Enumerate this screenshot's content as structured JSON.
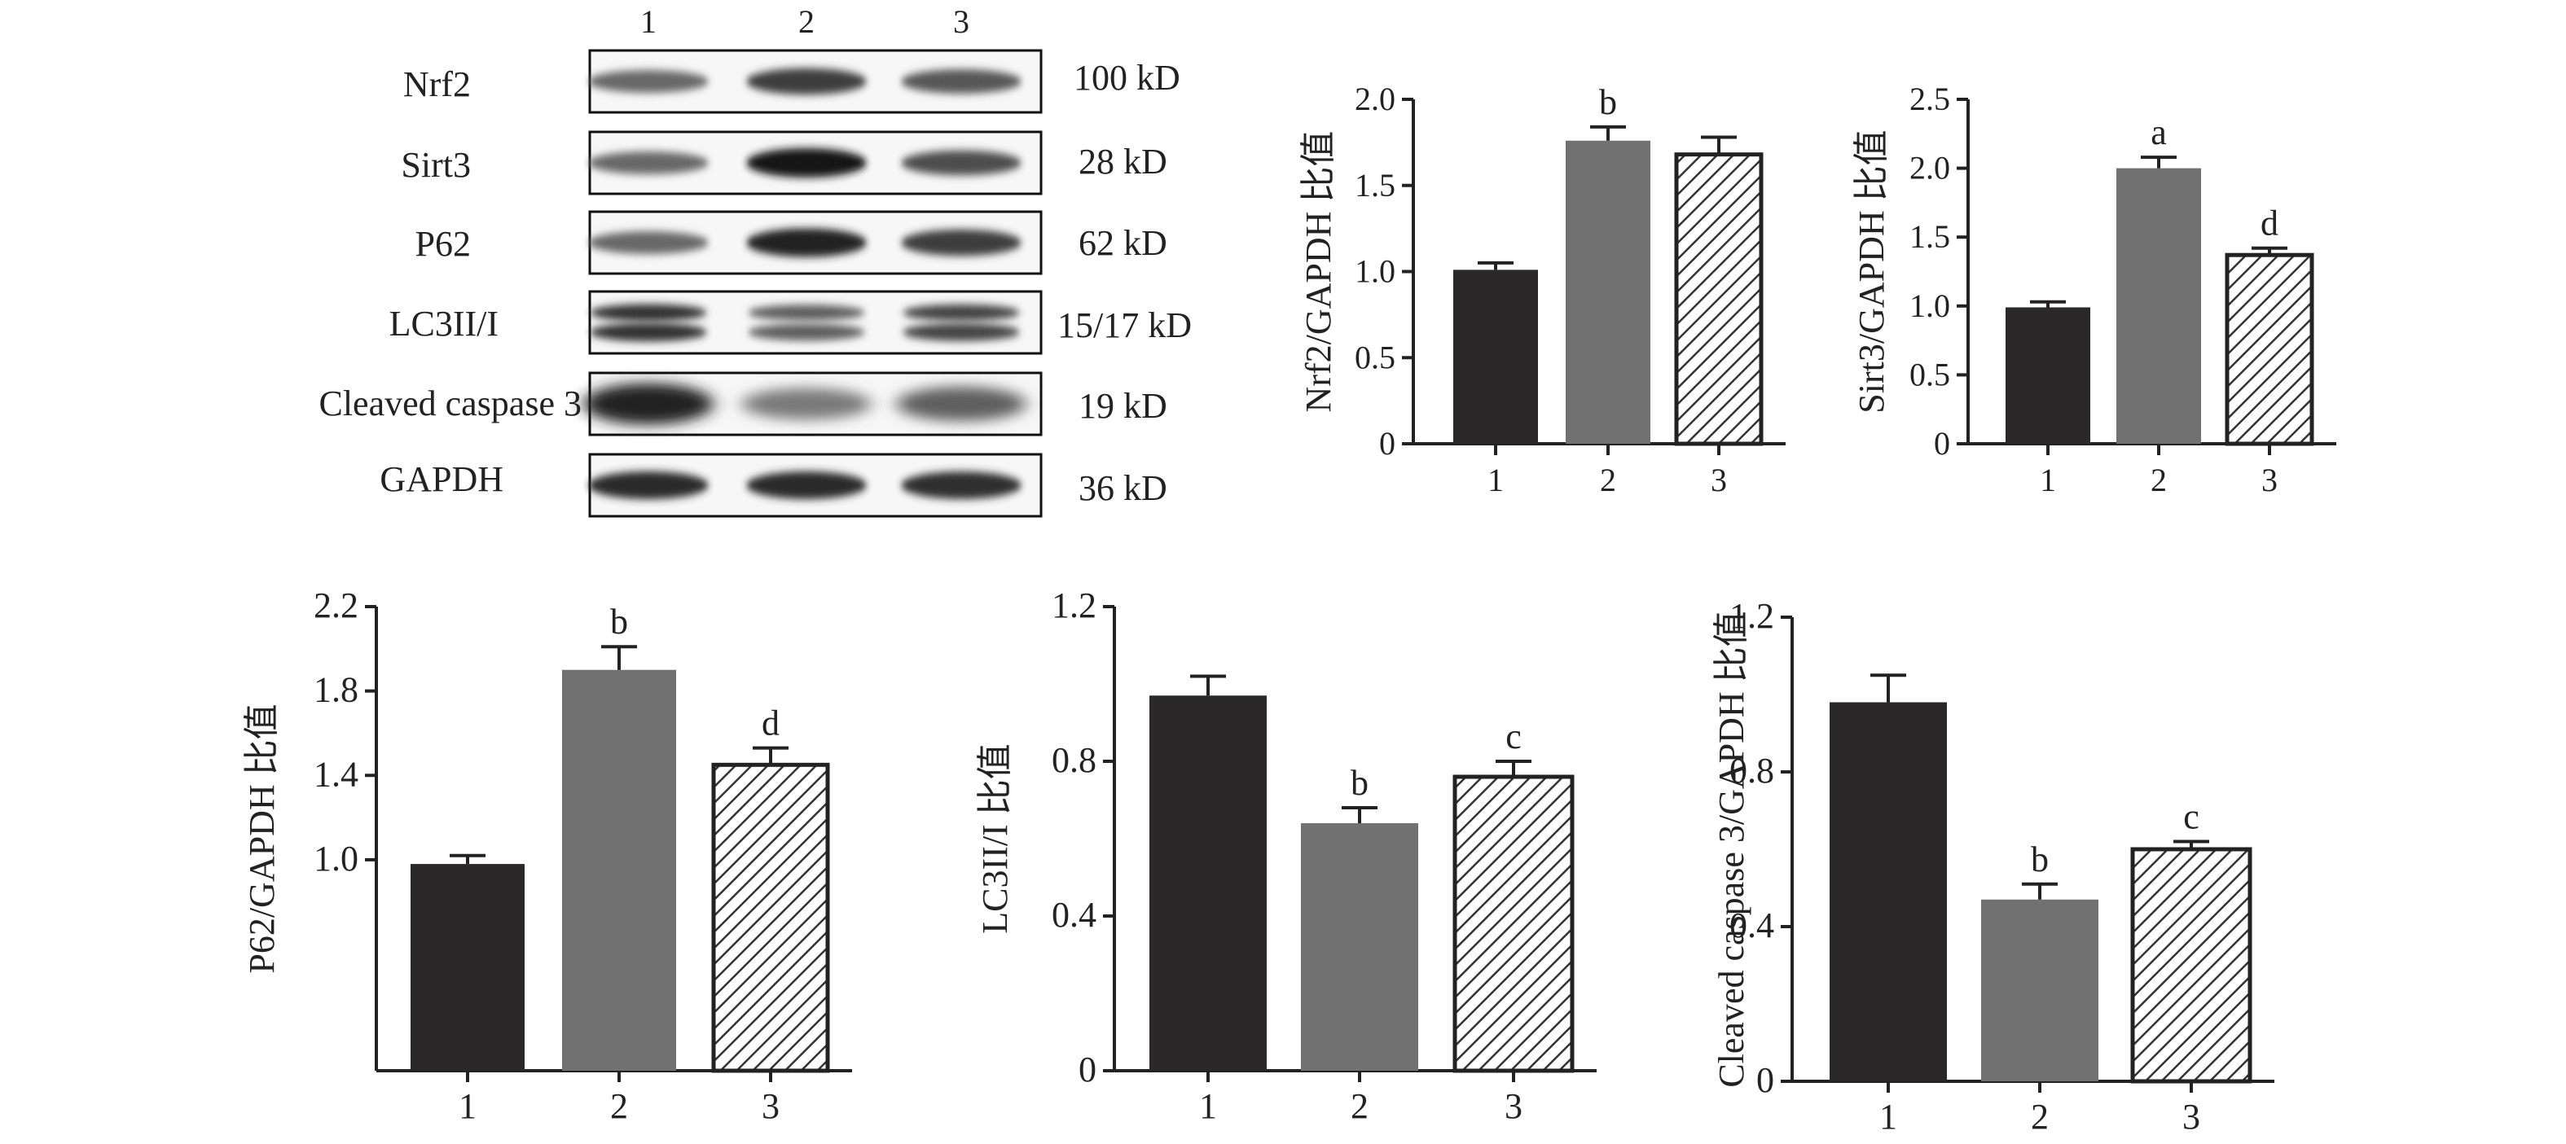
{
  "colors": {
    "group1": "#2b2829",
    "group2": "#717171",
    "group3_fill": "#ffffff",
    "group3_hatch": "#333333",
    "ink": "#222222"
  },
  "blot": {
    "lanes": [
      "1",
      "2",
      "3"
    ],
    "rows": [
      {
        "name": "Nrf2",
        "size": "100 kD",
        "band_intensity": [
          0.55,
          0.8,
          0.65
        ],
        "pattern": "single"
      },
      {
        "name": "Sirt3",
        "size": "28 kD",
        "band_intensity": [
          0.55,
          1.0,
          0.7
        ],
        "pattern": "single"
      },
      {
        "name": "P62",
        "size": "62 kD",
        "band_intensity": [
          0.55,
          0.95,
          0.8
        ],
        "pattern": "single"
      },
      {
        "name": "LC3II/I",
        "size": "15/17 kD",
        "band_intensity": [
          0.85,
          0.6,
          0.75
        ],
        "pattern": "double"
      },
      {
        "name": "Cleaved caspase 3",
        "size": "19 kD",
        "band_intensity": [
          0.95,
          0.45,
          0.6
        ],
        "pattern": "smear"
      },
      {
        "name": "GAPDH",
        "size": "36 kD",
        "band_intensity": [
          0.9,
          0.9,
          0.88
        ],
        "pattern": "single"
      }
    ]
  },
  "chart_data": [
    {
      "type": "bar",
      "categories": [
        "1",
        "2",
        "3"
      ],
      "values": [
        1.01,
        1.76,
        1.68
      ],
      "errors": [
        0.04,
        0.08,
        0.1
      ],
      "annotations": [
        "",
        "b",
        ""
      ],
      "ylabel": "Nrf2/GAPDH 比值",
      "ylim": [
        0,
        2.0
      ],
      "yticks": [
        0,
        0.5,
        1.0,
        1.5,
        2.0
      ],
      "ytick_labels": [
        "0",
        "0.5",
        "1.0",
        "1.5",
        "2.0"
      ],
      "xlabel": ""
    },
    {
      "type": "bar",
      "categories": [
        "1",
        "2",
        "3"
      ],
      "values": [
        0.99,
        2.0,
        1.37
      ],
      "errors": [
        0.04,
        0.08,
        0.05
      ],
      "annotations": [
        "",
        "a",
        "d"
      ],
      "ylabel": "Sirt3/GAPDH 比值",
      "ylim": [
        0,
        2.5
      ],
      "yticks": [
        0,
        0.5,
        1.0,
        1.5,
        2.0,
        2.5
      ],
      "ytick_labels": [
        "0",
        "0.5",
        "1.0",
        "1.5",
        "2.0",
        "2.5"
      ],
      "xlabel": ""
    },
    {
      "type": "bar",
      "categories": [
        "1",
        "2",
        "3"
      ],
      "values": [
        0.98,
        1.9,
        1.45
      ],
      "errors": [
        0.04,
        0.11,
        0.08
      ],
      "annotations": [
        "",
        "b",
        "d"
      ],
      "ylabel": "P62/GAPDH 比值",
      "ylim": [
        0,
        2.2
      ],
      "yticks": [
        1.0,
        1.4,
        1.8,
        2.2
      ],
      "ytick_labels": [
        "1.0",
        "1.4",
        "1.8",
        "2.2"
      ],
      "xlabel": ""
    },
    {
      "type": "bar",
      "categories": [
        "1",
        "2",
        "3"
      ],
      "values": [
        0.97,
        0.64,
        0.76
      ],
      "errors": [
        0.05,
        0.04,
        0.04
      ],
      "annotations": [
        "",
        "b",
        "c"
      ],
      "ylabel": "LC3II/I 比值",
      "ylim": [
        0,
        1.2
      ],
      "yticks": [
        0,
        0.4,
        0.8,
        1.2
      ],
      "ytick_labels": [
        "0",
        "0.4",
        "0.8",
        "1.2"
      ],
      "xlabel": ""
    },
    {
      "type": "bar",
      "categories": [
        "1",
        "2",
        "3"
      ],
      "values": [
        0.98,
        0.47,
        0.6
      ],
      "errors": [
        0.07,
        0.04,
        0.02
      ],
      "annotations": [
        "",
        "b",
        "c"
      ],
      "ylabel": "Cleaved caspase 3/GAPDH 比值",
      "ylim": [
        0,
        1.2
      ],
      "yticks": [
        0,
        0.4,
        0.8,
        1.2
      ],
      "ytick_labels": [
        "0",
        "0.4",
        "0.8",
        "1.2"
      ],
      "xlabel": ""
    }
  ]
}
